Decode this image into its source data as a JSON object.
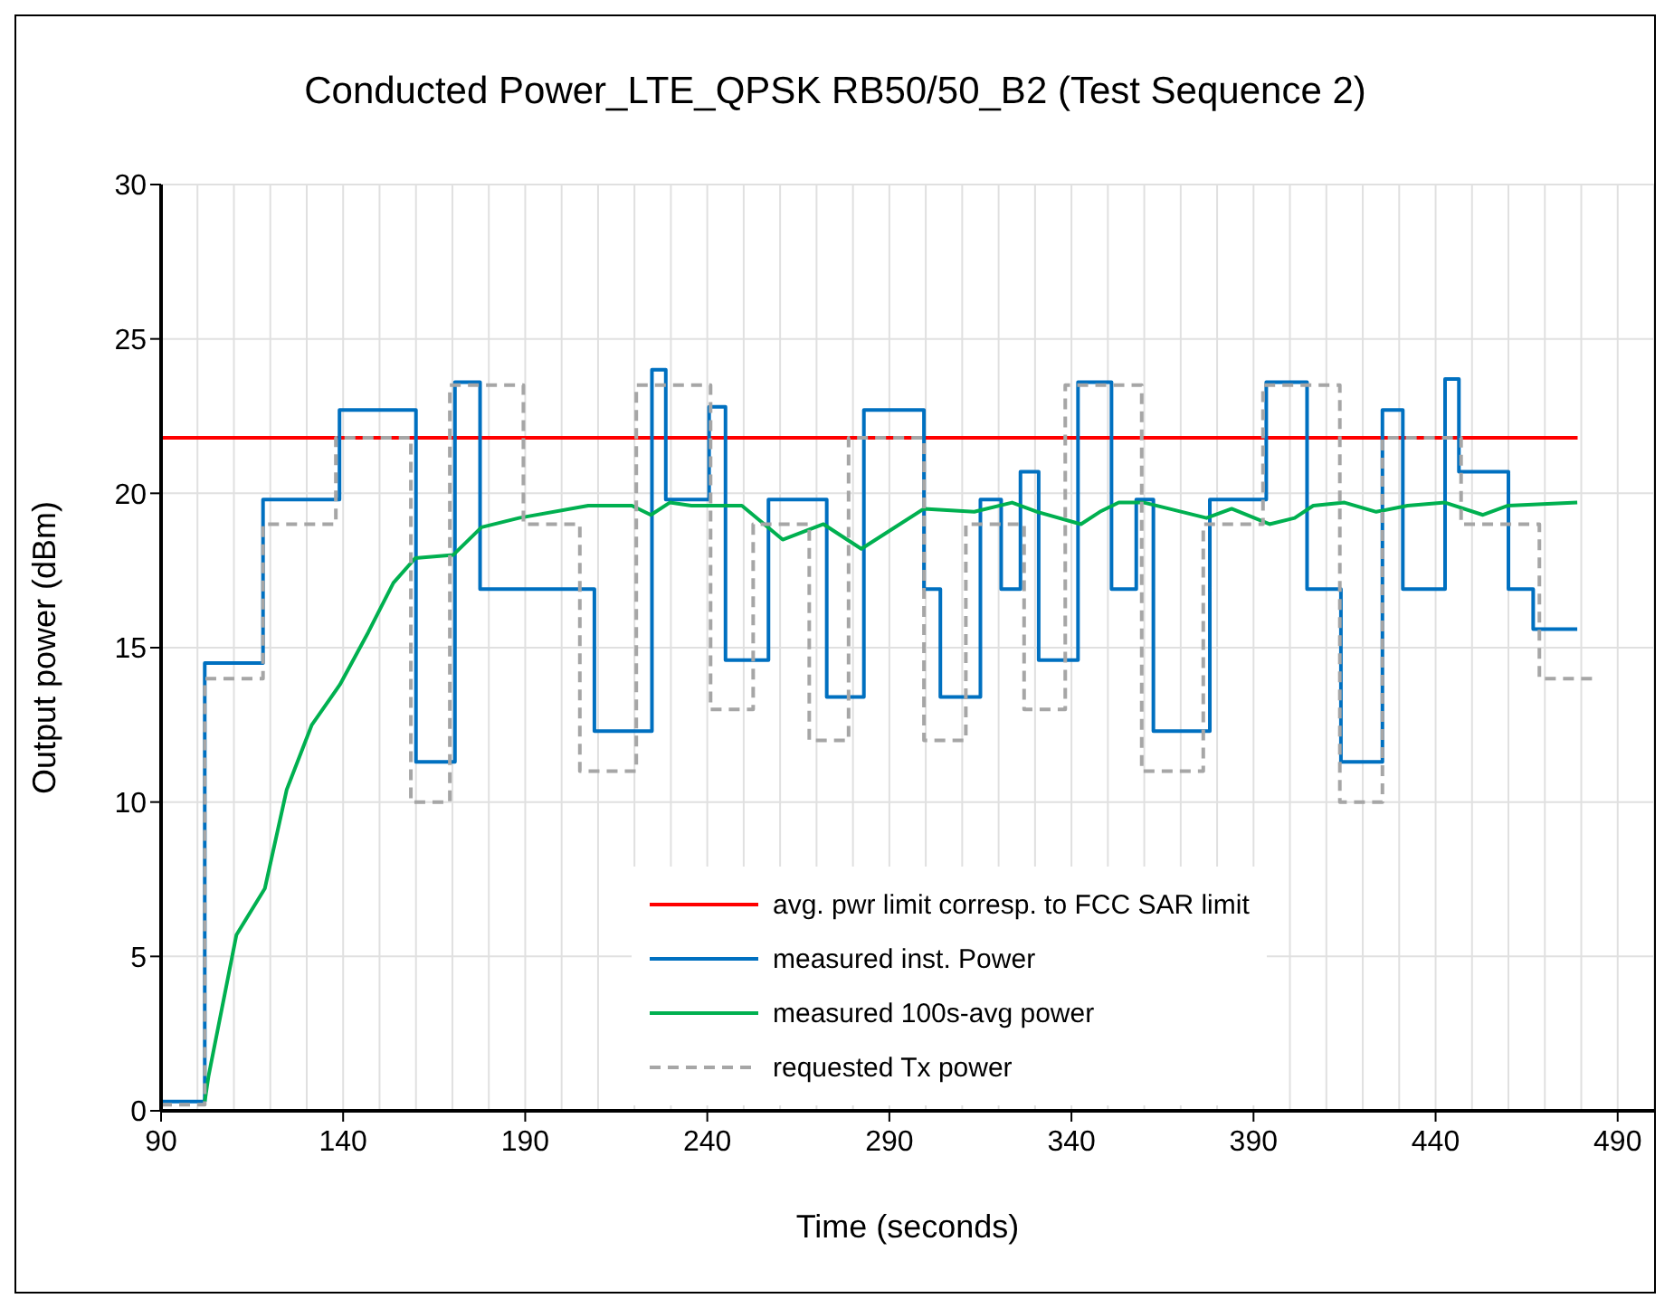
{
  "chart_data": {
    "type": "line",
    "title": "Conducted Power_LTE_QPSK  RB50/50_B2 (Test Sequence 2)",
    "xlabel": "Time (seconds)",
    "ylabel": "Output power (dBm)",
    "xlim": [
      90,
      500
    ],
    "ylim": [
      0,
      30
    ],
    "xticks": [
      90,
      {
        "value": 100,
        "label": null
      },
      {
        "value": 110,
        "label": null
      },
      {
        "value": 120,
        "label": null
      },
      {
        "value": 130,
        "label": null
      },
      140,
      {
        "value": 150,
        "label": null
      },
      {
        "value": 160,
        "label": null
      },
      {
        "value": 170,
        "label": null
      },
      {
        "value": 180,
        "label": null
      },
      190,
      {
        "value": 200,
        "label": null
      },
      {
        "value": 210,
        "label": null
      },
      {
        "value": 220,
        "label": null
      },
      {
        "value": 230,
        "label": null
      },
      240,
      {
        "value": 250,
        "label": null
      },
      {
        "value": 260,
        "label": null
      },
      {
        "value": 270,
        "label": null
      },
      {
        "value": 280,
        "label": null
      },
      290,
      {
        "value": 300,
        "label": null
      },
      {
        "value": 310,
        "label": null
      },
      {
        "value": 320,
        "label": null
      },
      {
        "value": 330,
        "label": null
      },
      340,
      {
        "value": 350,
        "label": null
      },
      {
        "value": 360,
        "label": null
      },
      {
        "value": 370,
        "label": null
      },
      {
        "value": 380,
        "label": null
      },
      390,
      {
        "value": 400,
        "label": null
      },
      {
        "value": 410,
        "label": null
      },
      {
        "value": 420,
        "label": null
      },
      {
        "value": 430,
        "label": null
      },
      440,
      {
        "value": 450,
        "label": null
      },
      {
        "value": 460,
        "label": null
      },
      {
        "value": 470,
        "label": null
      },
      {
        "value": 480,
        "label": null
      },
      490,
      {
        "value": 500,
        "label": null
      }
    ],
    "yticks": [
      0,
      5,
      10,
      15,
      20,
      25,
      30
    ],
    "grid": true,
    "legend": "bottom",
    "marker": "none",
    "series": [
      {
        "name": "avg. pwr limit corresp. to FCC SAR limit",
        "color": "#ff0000",
        "x": [
          90,
          479
        ],
        "values": [
          21.8,
          21.8
        ]
      },
      {
        "name": "measured inst. Power",
        "color": "#0070c0",
        "x": [
          90,
          102,
          102,
          118,
          118,
          139,
          139,
          160,
          160,
          170.7,
          170.7,
          177.6,
          177.6,
          209,
          209,
          224.8,
          224.8,
          228.6,
          228.6,
          240.5,
          240.5,
          245,
          245,
          256.8,
          256.8,
          272.8,
          272.8,
          283,
          283,
          299.5,
          299.5,
          304,
          304,
          315,
          315,
          320.7,
          320.7,
          326,
          326,
          331,
          331,
          341.8,
          341.8,
          351,
          351,
          357.8,
          357.8,
          362.5,
          362.5,
          378,
          378,
          393.5,
          393.5,
          404.7,
          404.7,
          414,
          414,
          425.4,
          425.4,
          431,
          431,
          442.6,
          442.6,
          446.4,
          446.4,
          460,
          460,
          466.8,
          466.8,
          478.9
        ],
        "values": [
          0.3,
          0.3,
          14.5,
          14.5,
          19.8,
          19.8,
          22.7,
          22.7,
          11.3,
          11.3,
          23.6,
          23.6,
          16.9,
          16.9,
          12.3,
          12.3,
          24.0,
          24.0,
          19.8,
          19.8,
          22.8,
          22.8,
          14.6,
          14.6,
          19.8,
          19.8,
          13.4,
          13.4,
          22.7,
          22.7,
          16.9,
          16.9,
          13.4,
          13.4,
          19.8,
          19.8,
          16.9,
          16.9,
          20.7,
          20.7,
          14.6,
          14.6,
          23.6,
          23.6,
          16.9,
          16.9,
          19.8,
          19.8,
          12.3,
          12.3,
          19.8,
          19.8,
          23.6,
          23.6,
          16.9,
          16.9,
          11.3,
          11.3,
          22.7,
          22.7,
          16.9,
          16.9,
          23.7,
          23.7,
          20.7,
          20.7,
          16.9,
          16.9,
          15.6,
          15.6
        ]
      },
      {
        "name": "measured 100s-avg power",
        "color": "#00b050",
        "x": [
          102,
          103,
          110.7,
          118.5,
          124.5,
          131.4,
          139.1,
          146.9,
          153.8,
          159.8,
          170.2,
          178,
          188.3,
          207.3,
          219.3,
          224.5,
          229.7,
          235.7,
          249.5,
          260.7,
          271.9,
          282.3,
          299.5,
          313.3,
          323.7,
          330.6,
          342.6,
          347.8,
          353,
          359.9,
          366.8,
          377.1,
          384,
          394.4,
          401.3,
          406.4,
          415,
          423.7,
          432.3,
          442.6,
          453,
          459.9,
          478.9
        ],
        "values": [
          0.3,
          1.1,
          5.7,
          7.2,
          10.4,
          12.5,
          13.8,
          15.5,
          17.1,
          17.9,
          18.0,
          18.9,
          19.2,
          19.6,
          19.6,
          19.3,
          19.7,
          19.6,
          19.6,
          18.5,
          19.0,
          18.2,
          19.5,
          19.4,
          19.7,
          19.4,
          19.0,
          19.4,
          19.7,
          19.7,
          19.5,
          19.2,
          19.5,
          19.0,
          19.2,
          19.6,
          19.7,
          19.4,
          19.6,
          19.7,
          19.3,
          19.6,
          19.7
        ]
      },
      {
        "name": "requested Tx power",
        "color": "#a6a6a6",
        "line_style": "dashed",
        "x": [
          90,
          102,
          102,
          118,
          118,
          138,
          138,
          158.6,
          158.6,
          169.3,
          169.3,
          189.5,
          189.5,
          205,
          205,
          220.5,
          220.5,
          240.9,
          240.9,
          252.6,
          252.6,
          268,
          268,
          278.8,
          278.8,
          299.5,
          299.5,
          311,
          311,
          327,
          327,
          338.3,
          338.3,
          359.3,
          359.3,
          376.2,
          376.2,
          392.6,
          392.6,
          413.7,
          413.7,
          425.4,
          425.4,
          447,
          447,
          468.5,
          468.5,
          484.4
        ],
        "values": [
          0.2,
          0.2,
          14,
          14,
          19,
          19,
          21.8,
          21.8,
          10,
          10,
          23.5,
          23.5,
          19,
          19,
          11,
          11,
          23.5,
          23.5,
          13,
          13,
          19,
          19,
          12,
          12,
          21.8,
          21.8,
          12,
          12,
          19,
          19,
          13,
          13,
          23.5,
          23.5,
          11,
          11,
          19,
          19,
          23.5,
          23.5,
          10,
          10,
          21.8,
          21.8,
          19,
          19,
          14,
          14
        ]
      }
    ]
  }
}
